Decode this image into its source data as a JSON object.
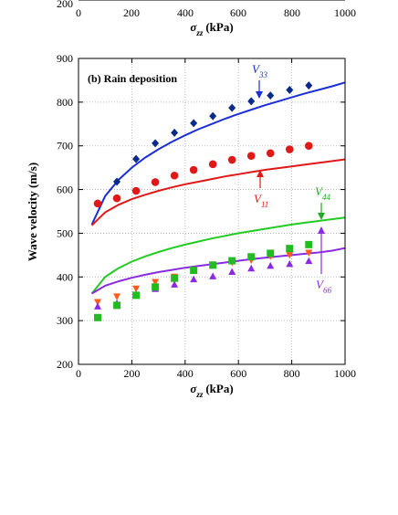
{
  "colors": {
    "V33": "#1a2fd6",
    "V11": "#e01818",
    "V44": "#22cc22",
    "V66": "#8a2be2",
    "v33_pts": "#0b2a8a",
    "v11_pts": "#e01818",
    "v_tri_down": "#ff5a1a",
    "v_tri_up": "#8a2be2",
    "v_square": "#22bb22"
  },
  "top_axis": {
    "tick_labels": [
      "200",
      "0",
      "200",
      "400",
      "600",
      "800",
      "1000"
    ],
    "xlabel_main": "σ",
    "xlabel_sub": "zz",
    "xlabel_unit": "(kPa)"
  },
  "chart_data": {
    "type": "scatter",
    "title": "(b) Rain deposition",
    "xlabel_main": "σ",
    "xlabel_sub": "zz",
    "xlabel_unit": "(kPa)",
    "ylabel": "Wave velocity  (m/s)",
    "xlim": [
      0,
      1000
    ],
    "ylim": [
      200,
      900
    ],
    "xticks": [
      "0",
      "200",
      "400",
      "600",
      "800",
      "1000"
    ],
    "yticks": [
      "200",
      "300",
      "400",
      "500",
      "600",
      "700",
      "800",
      "900"
    ],
    "grid": true,
    "curves": [
      {
        "name": "V33",
        "label_main": "V",
        "label_sub": "33",
        "x": [
          50,
          100,
          150,
          200,
          250,
          300,
          350,
          400,
          450,
          500,
          550,
          600,
          650,
          700,
          750,
          800,
          850,
          900,
          950,
          1000
        ],
        "y": [
          520,
          585,
          622,
          650,
          673,
          692,
          709,
          724,
          738,
          750,
          762,
          773,
          783,
          793,
          802,
          811,
          820,
          828,
          836,
          845
        ]
      },
      {
        "name": "V11",
        "label_main": "V",
        "label_sub": "11",
        "x": [
          50,
          100,
          150,
          200,
          250,
          300,
          350,
          400,
          450,
          500,
          550,
          600,
          650,
          700,
          750,
          800,
          850,
          900,
          950,
          1000
        ],
        "y": [
          518,
          548,
          565,
          578,
          588,
          597,
          605,
          612,
          618,
          624,
          630,
          635,
          640,
          645,
          649,
          653,
          657,
          661,
          665,
          669
        ]
      },
      {
        "name": "V44",
        "label_main": "V",
        "label_sub": "44",
        "x": [
          50,
          100,
          150,
          200,
          250,
          300,
          350,
          400,
          450,
          500,
          550,
          600,
          650,
          700,
          750,
          800,
          850,
          900,
          950,
          1000
        ],
        "y": [
          362,
          400,
          420,
          435,
          447,
          457,
          466,
          474,
          481,
          488,
          494,
          500,
          505,
          510,
          515,
          520,
          524,
          528,
          532,
          536
        ]
      },
      {
        "name": "V66",
        "label_main": "V",
        "label_sub": "66",
        "x": [
          50,
          100,
          150,
          200,
          250,
          300,
          350,
          400,
          450,
          500,
          550,
          600,
          650,
          700,
          750,
          800,
          850,
          900,
          950,
          1000
        ],
        "y": [
          362,
          380,
          390,
          398,
          405,
          411,
          416,
          421,
          425,
          429,
          433,
          437,
          441,
          444,
          447,
          450,
          453,
          456,
          460,
          466
        ]
      }
    ],
    "points": [
      {
        "name": "V33 data",
        "marker": "diamond",
        "x": [
          72,
          144,
          216,
          288,
          360,
          432,
          504,
          576,
          648,
          720,
          792,
          864
        ],
        "y": [
          568,
          618,
          670,
          706,
          730,
          752,
          768,
          787,
          802,
          815,
          828,
          838
        ]
      },
      {
        "name": "V11 data",
        "marker": "circle",
        "x": [
          72,
          144,
          216,
          288,
          360,
          432,
          504,
          576,
          648,
          720,
          792,
          864
        ],
        "y": [
          568,
          580,
          597,
          617,
          632,
          645,
          658,
          668,
          677,
          683,
          692,
          700
        ]
      },
      {
        "name": "V66 data (down)",
        "marker": "triangle-down",
        "x": [
          72,
          144,
          216,
          288,
          360,
          432,
          504,
          576,
          648,
          720,
          792,
          864
        ],
        "y": [
          342,
          355,
          373,
          388,
          400,
          415,
          428,
          433,
          438,
          447,
          450,
          455
        ]
      },
      {
        "name": "V66 data (up)",
        "marker": "triangle-up",
        "x": [
          72,
          144,
          216,
          288,
          360,
          432,
          504,
          576,
          648,
          720,
          792,
          864
        ],
        "y": [
          333,
          340,
          360,
          373,
          383,
          395,
          402,
          412,
          420,
          426,
          430,
          437
        ]
      },
      {
        "name": "V44 data",
        "marker": "square",
        "x": [
          72,
          144,
          216,
          288,
          360,
          432,
          504,
          576,
          648,
          720,
          792,
          864
        ],
        "y": [
          307,
          335,
          358,
          377,
          397,
          415,
          427,
          437,
          446,
          454,
          465,
          474
        ]
      }
    ]
  }
}
